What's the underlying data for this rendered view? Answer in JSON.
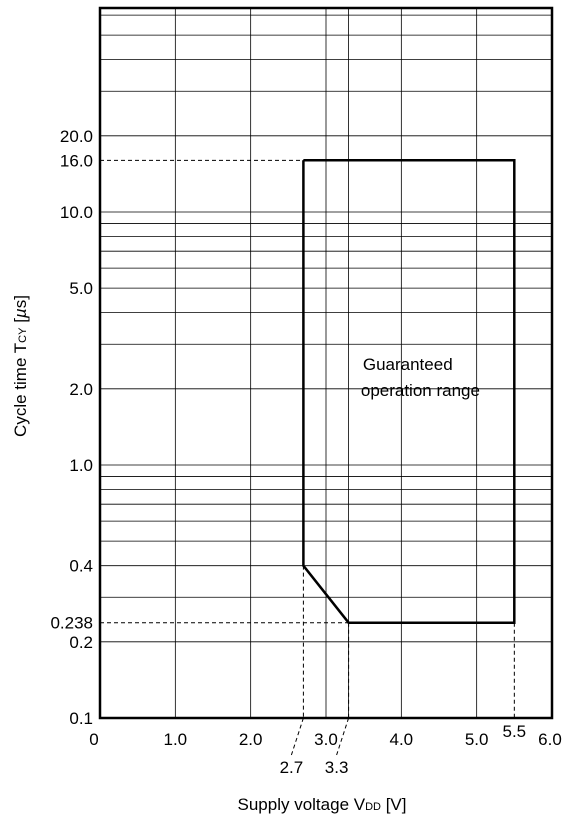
{
  "chart_data": {
    "type": "line",
    "title": "",
    "xlabel": "Supply voltage  VDD  [V]",
    "xlabel_main": "Supply voltage  V",
    "xlabel_sub": "DD",
    "xlabel_unit": "  [V]",
    "ylabel_main": "Cycle time  T",
    "ylabel_sub": "CY",
    "ylabel_unit": "  [",
    "ylabel_mu": "µ",
    "ylabel_end": "s]",
    "x_scale": "linear",
    "y_scale": "log",
    "xlim": [
      0,
      6.0
    ],
    "ylim": [
      0.1,
      64
    ],
    "grid": true,
    "x_ticks": [
      {
        "value": 0,
        "label": "0"
      },
      {
        "value": 1.0,
        "label": "1.0"
      },
      {
        "value": 2.0,
        "label": "2.0"
      },
      {
        "value": 3.0,
        "label": "3.0"
      },
      {
        "value": 4.0,
        "label": "4.0"
      },
      {
        "value": 5.0,
        "label": "5.0"
      },
      {
        "value": 6.0,
        "label": "6.0"
      }
    ],
    "x_grid_values": [
      1.0,
      2.0,
      3.0,
      4.0,
      5.0,
      3.3
    ],
    "y_ticks": [
      {
        "value": 0.1,
        "label": "0.1"
      },
      {
        "value": 0.2,
        "label": "0.2"
      },
      {
        "value": 0.4,
        "label": "0.4"
      },
      {
        "value": 1.0,
        "label": "1.0"
      },
      {
        "value": 2.0,
        "label": "2.0"
      },
      {
        "value": 5.0,
        "label": "5.0"
      },
      {
        "value": 10.0,
        "label": "10.0"
      },
      {
        "value": 20.0,
        "label": "20.0"
      }
    ],
    "y_grid_values": [
      0.2,
      0.3,
      0.4,
      0.5,
      0.6,
      0.7,
      0.8,
      0.9,
      1,
      2,
      3,
      4,
      5,
      6,
      7,
      8,
      9,
      10,
      20,
      30,
      40,
      50,
      60
    ],
    "series": [
      {
        "points": [
          {
            "x": 2.7,
            "y": 16.0
          },
          {
            "x": 5.5,
            "y": 16.0
          },
          {
            "x": 5.5,
            "y": 0.238
          },
          {
            "x": 3.3,
            "y": 0.238
          },
          {
            "x": 2.7,
            "y": 0.4
          },
          {
            "x": 2.7,
            "y": 16.0
          }
        ]
      }
    ],
    "reference_values": {
      "y": [
        {
          "value": 16.0,
          "label": "16.0",
          "from_x": 0,
          "to_x": 2.7
        },
        {
          "value": 0.238,
          "label": "0.238",
          "from_x": 0,
          "to_x": 5.5
        }
      ],
      "x": [
        {
          "value": 2.7,
          "label": "2.7"
        },
        {
          "value": 3.3,
          "label": "3.3"
        },
        {
          "value": 5.5,
          "label": "5.5"
        }
      ]
    },
    "annotations": [
      {
        "line1": "Guaranteed",
        "line2": "operation range"
      }
    ]
  }
}
